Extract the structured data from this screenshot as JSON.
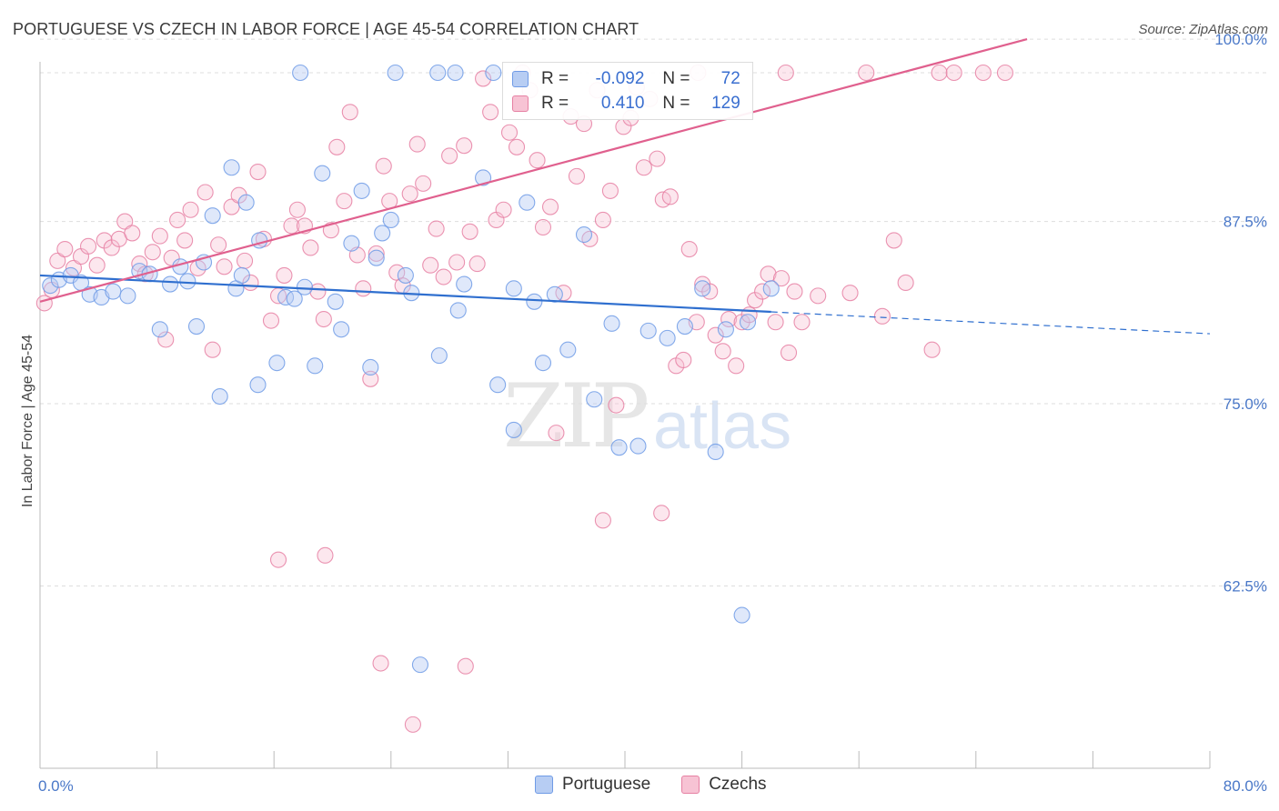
{
  "title": "PORTUGUESE VS CZECH IN LABOR FORCE | AGE 45-54 CORRELATION CHART",
  "source": "Source: ZipAtlas.com",
  "watermark": {
    "zip": "ZIP",
    "atlas": "atlas"
  },
  "legend": {
    "rows": [
      {
        "r_label": "R =",
        "r_value": "-0.092",
        "n_label": "N =",
        "n_value": "72",
        "color": "#6f9be6",
        "fill": "#b7cdf3"
      },
      {
        "r_label": "R =",
        "r_value": "0.410",
        "n_label": "N =",
        "n_value": "129",
        "color": "#e680a3",
        "fill": "#f7c3d4"
      }
    ]
  },
  "bottom_legend": [
    {
      "label": "Portuguese",
      "color": "#6f9be6",
      "fill": "#b7cdf3"
    },
    {
      "label": "Czechs",
      "color": "#e680a3",
      "fill": "#f7c3d4"
    }
  ],
  "chart_data": {
    "type": "scatter",
    "title": "PORTUGUESE VS CZECH IN LABOR FORCE | AGE 45-54 CORRELATION CHART",
    "xlabel": "",
    "ylabel": "In Labor Force | Age 45-54",
    "xlim": [
      0,
      80
    ],
    "ylim": [
      50,
      100
    ],
    "x_tick_labels": [
      "0.0%",
      "80.0%"
    ],
    "y_ticks": [
      62.5,
      75.0,
      87.5,
      100.0
    ],
    "y_tick_labels": [
      "62.5%",
      "75.0%",
      "87.5%",
      "100.0%"
    ],
    "grid": "horizontal dashed",
    "colors": {
      "Portuguese": "#6f9be6",
      "Czechs": "#e680a3"
    },
    "series": [
      {
        "name": "Portuguese",
        "trend": {
          "x": [
            0,
            50
          ],
          "y": [
            83.8,
            81.3
          ],
          "dashed_to": [
            80,
            79.8
          ]
        },
        "points": [
          [
            0.7,
            83.1
          ],
          [
            1.3,
            83.5
          ],
          [
            2.1,
            83.8
          ],
          [
            2.8,
            83.3
          ],
          [
            3.4,
            82.5
          ],
          [
            4.2,
            82.3
          ],
          [
            5.0,
            82.7
          ],
          [
            6.0,
            82.4
          ],
          [
            6.8,
            84.1
          ],
          [
            7.5,
            83.9
          ],
          [
            8.2,
            80.1
          ],
          [
            8.9,
            83.2
          ],
          [
            9.6,
            84.4
          ],
          [
            10.1,
            83.4
          ],
          [
            10.7,
            80.3
          ],
          [
            11.2,
            84.7
          ],
          [
            11.8,
            87.9
          ],
          [
            12.3,
            75.5
          ],
          [
            13.4,
            82.9
          ],
          [
            13.8,
            83.8
          ],
          [
            14.9,
            76.3
          ],
          [
            13.1,
            91.2
          ],
          [
            14.1,
            88.8
          ],
          [
            15.0,
            86.2
          ],
          [
            16.2,
            77.8
          ],
          [
            16.8,
            82.3
          ],
          [
            17.4,
            82.2
          ],
          [
            18.1,
            83.0
          ],
          [
            18.8,
            77.6
          ],
          [
            19.3,
            90.8
          ],
          [
            20.2,
            82.0
          ],
          [
            20.6,
            80.1
          ],
          [
            21.3,
            86.0
          ],
          [
            22.0,
            89.6
          ],
          [
            22.6,
            77.5
          ],
          [
            23.0,
            85.0
          ],
          [
            23.4,
            86.7
          ],
          [
            24.0,
            87.6
          ],
          [
            25.0,
            83.8
          ],
          [
            25.4,
            82.6
          ],
          [
            27.3,
            78.3
          ],
          [
            28.6,
            81.4
          ],
          [
            29.0,
            83.2
          ],
          [
            30.3,
            90.5
          ],
          [
            31.3,
            76.3
          ],
          [
            32.4,
            73.2
          ],
          [
            33.3,
            88.8
          ],
          [
            33.8,
            82.0
          ],
          [
            34.4,
            77.8
          ],
          [
            35.2,
            82.5
          ],
          [
            36.1,
            78.7
          ],
          [
            37.2,
            86.6
          ],
          [
            37.9,
            75.3
          ],
          [
            39.1,
            80.5
          ],
          [
            39.6,
            72.0
          ],
          [
            40.9,
            72.1
          ],
          [
            41.6,
            80.0
          ],
          [
            42.9,
            79.5
          ],
          [
            44.1,
            80.3
          ],
          [
            45.3,
            82.9
          ],
          [
            46.2,
            71.7
          ],
          [
            46.9,
            80.1
          ],
          [
            48.4,
            80.6
          ],
          [
            50.0,
            82.9
          ],
          [
            17.8,
            99.8
          ],
          [
            24.3,
            97.9
          ],
          [
            27.2,
            99.9
          ],
          [
            28.4,
            99.8
          ],
          [
            31.0,
            100.0
          ],
          [
            26.0,
            57.1
          ],
          [
            48.0,
            60.5
          ],
          [
            32.4,
            82.9
          ]
        ]
      },
      {
        "name": "Czechs",
        "trend": {
          "x": [
            0,
            67.5
          ],
          "y": [
            82.0,
            100.0
          ]
        },
        "points": [
          [
            0.3,
            81.9
          ],
          [
            0.8,
            82.8
          ],
          [
            1.2,
            84.8
          ],
          [
            1.7,
            85.6
          ],
          [
            2.3,
            84.3
          ],
          [
            2.8,
            85.1
          ],
          [
            3.3,
            85.8
          ],
          [
            3.9,
            84.5
          ],
          [
            4.4,
            86.2
          ],
          [
            4.9,
            85.7
          ],
          [
            5.4,
            86.3
          ],
          [
            5.8,
            87.5
          ],
          [
            6.3,
            86.7
          ],
          [
            6.8,
            84.6
          ],
          [
            7.2,
            83.9
          ],
          [
            7.7,
            85.4
          ],
          [
            8.2,
            86.5
          ],
          [
            8.6,
            79.4
          ],
          [
            9.0,
            85.0
          ],
          [
            9.4,
            87.6
          ],
          [
            9.9,
            86.2
          ],
          [
            10.3,
            88.3
          ],
          [
            10.8,
            84.3
          ],
          [
            11.3,
            89.5
          ],
          [
            11.8,
            78.7
          ],
          [
            12.2,
            85.9
          ],
          [
            12.6,
            84.4
          ],
          [
            13.1,
            88.5
          ],
          [
            13.6,
            89.3
          ],
          [
            14.0,
            84.8
          ],
          [
            14.4,
            83.3
          ],
          [
            14.9,
            90.9
          ],
          [
            15.3,
            86.3
          ],
          [
            15.8,
            80.7
          ],
          [
            16.3,
            82.4
          ],
          [
            16.7,
            83.8
          ],
          [
            17.2,
            87.2
          ],
          [
            17.6,
            88.3
          ],
          [
            18.1,
            87.2
          ],
          [
            18.5,
            85.7
          ],
          [
            19.0,
            82.7
          ],
          [
            19.4,
            80.8
          ],
          [
            19.9,
            86.9
          ],
          [
            20.3,
            92.6
          ],
          [
            20.8,
            88.9
          ],
          [
            21.2,
            95.0
          ],
          [
            21.7,
            85.2
          ],
          [
            22.1,
            82.9
          ],
          [
            22.6,
            76.7
          ],
          [
            23.0,
            85.3
          ],
          [
            23.5,
            91.3
          ],
          [
            23.9,
            88.9
          ],
          [
            24.4,
            84.0
          ],
          [
            24.8,
            83.1
          ],
          [
            25.3,
            89.4
          ],
          [
            25.8,
            92.8
          ],
          [
            26.2,
            90.1
          ],
          [
            26.7,
            84.5
          ],
          [
            27.1,
            87.0
          ],
          [
            27.6,
            83.7
          ],
          [
            28.0,
            92.0
          ],
          [
            28.5,
            84.7
          ],
          [
            29.0,
            92.7
          ],
          [
            29.4,
            86.8
          ],
          [
            29.9,
            84.6
          ],
          [
            30.3,
            97.3
          ],
          [
            30.8,
            95.0
          ],
          [
            31.2,
            87.6
          ],
          [
            31.7,
            88.3
          ],
          [
            32.1,
            93.6
          ],
          [
            32.6,
            92.6
          ],
          [
            33.0,
            98.6
          ],
          [
            33.5,
            96.5
          ],
          [
            34.0,
            91.7
          ],
          [
            34.4,
            87.1
          ],
          [
            34.9,
            88.5
          ],
          [
            35.3,
            73.0
          ],
          [
            35.8,
            82.6
          ],
          [
            36.3,
            94.7
          ],
          [
            36.7,
            90.6
          ],
          [
            37.2,
            94.2
          ],
          [
            37.6,
            86.3
          ],
          [
            38.1,
            96.5
          ],
          [
            38.5,
            87.6
          ],
          [
            39.0,
            89.6
          ],
          [
            39.4,
            74.9
          ],
          [
            39.9,
            94.0
          ],
          [
            40.4,
            94.6
          ],
          [
            40.8,
            96.7
          ],
          [
            41.3,
            91.2
          ],
          [
            41.7,
            95.9
          ],
          [
            42.2,
            91.8
          ],
          [
            42.6,
            89.0
          ],
          [
            43.1,
            89.2
          ],
          [
            43.5,
            77.6
          ],
          [
            44.0,
            78.0
          ],
          [
            44.4,
            85.6
          ],
          [
            44.9,
            80.6
          ],
          [
            45.3,
            83.2
          ],
          [
            45.8,
            82.7
          ],
          [
            46.2,
            79.7
          ],
          [
            46.7,
            78.6
          ],
          [
            47.1,
            80.8
          ],
          [
            47.6,
            77.6
          ],
          [
            48.0,
            80.6
          ],
          [
            48.5,
            81.1
          ],
          [
            48.9,
            82.1
          ],
          [
            49.4,
            82.7
          ],
          [
            49.8,
            83.9
          ],
          [
            50.3,
            80.6
          ],
          [
            50.7,
            83.6
          ],
          [
            51.2,
            78.5
          ],
          [
            51.6,
            82.7
          ],
          [
            52.1,
            80.6
          ],
          [
            53.2,
            82.4
          ],
          [
            55.4,
            82.6
          ],
          [
            57.6,
            81.0
          ],
          [
            58.4,
            86.2
          ],
          [
            59.2,
            83.3
          ],
          [
            61.0,
            78.7
          ],
          [
            16.3,
            64.3
          ],
          [
            19.5,
            64.6
          ],
          [
            23.3,
            57.2
          ],
          [
            25.5,
            53.0
          ],
          [
            29.1,
            57.0
          ],
          [
            38.5,
            67.0
          ],
          [
            42.5,
            67.5
          ],
          [
            45.0,
            100.0
          ],
          [
            51.0,
            100.0
          ],
          [
            56.5,
            100.0
          ],
          [
            61.5,
            100.0
          ],
          [
            62.5,
            100.0
          ],
          [
            64.5,
            100.0
          ],
          [
            66.0,
            100.0
          ]
        ]
      }
    ]
  }
}
